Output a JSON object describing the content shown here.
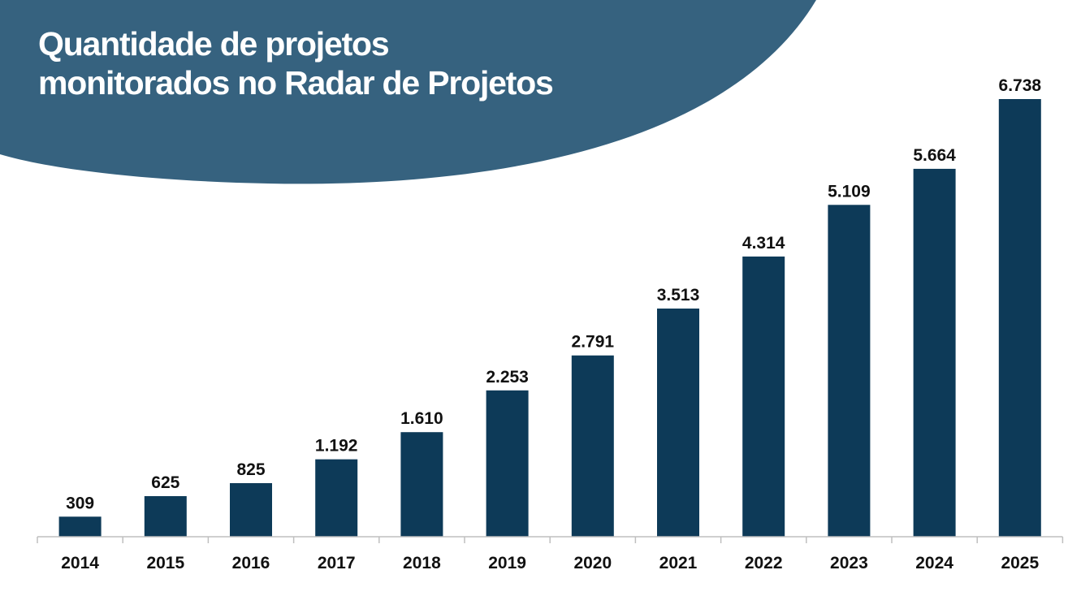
{
  "colors": {
    "header_bg": "#36627f",
    "bar": "#0d3a58",
    "axis": "#bfbfbf"
  },
  "chart_data": {
    "type": "bar",
    "title_lines": [
      "Quantidade de projetos",
      "monitorados no Radar de Projetos"
    ],
    "categories": [
      "2014",
      "2015",
      "2016",
      "2017",
      "2018",
      "2019",
      "2020",
      "2021",
      "2022",
      "2023",
      "2024",
      "2025"
    ],
    "values": [
      309,
      625,
      825,
      1192,
      1610,
      2253,
      2791,
      3513,
      4314,
      5109,
      5664,
      6738
    ],
    "value_labels": [
      "309",
      "625",
      "825",
      "1.192",
      "1.610",
      "2.253",
      "2.791",
      "3.513",
      "4.314",
      "5.109",
      "5.664",
      "6.738"
    ],
    "xlabel": "",
    "ylabel": "",
    "ylim": [
      0,
      6738
    ],
    "grid": false,
    "legend": "none"
  }
}
